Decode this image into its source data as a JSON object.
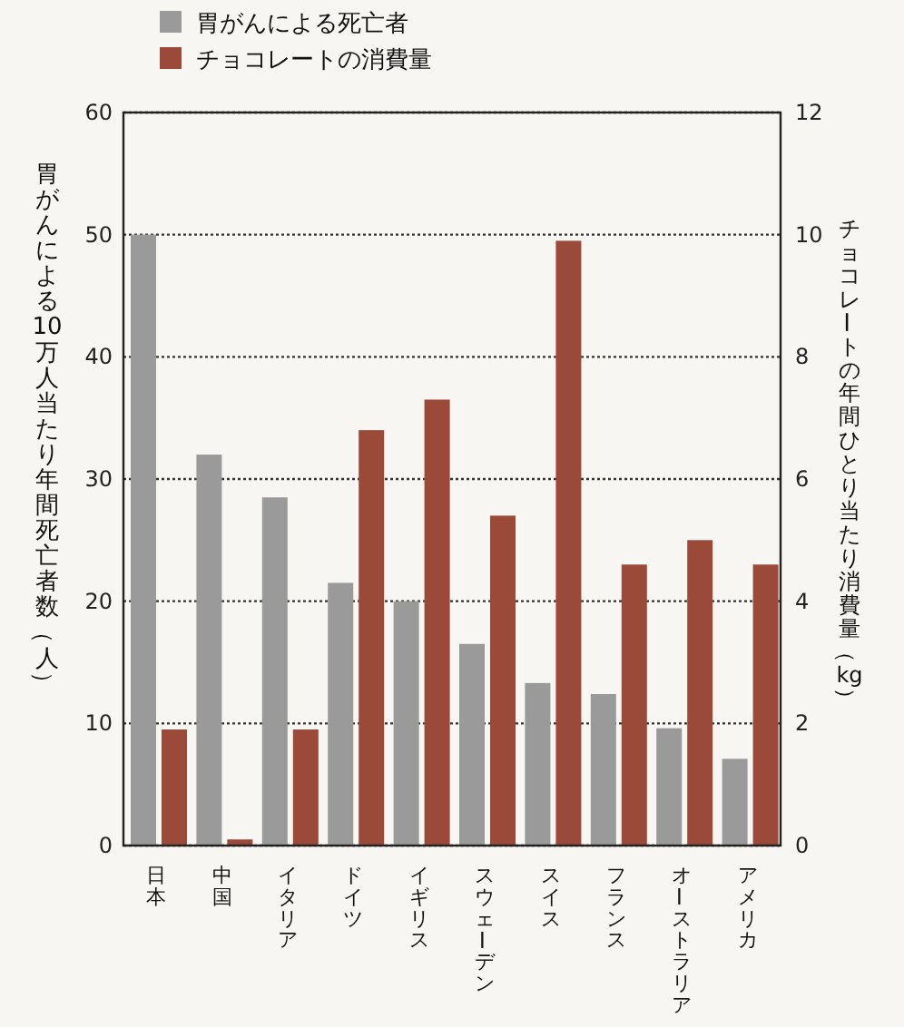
{
  "chart_data": {
    "type": "bar",
    "categories": [
      "日本",
      "中国",
      "イタリア",
      "ドイツ",
      "イギリス",
      "スウェーデン",
      "スイス",
      "フランス",
      "オーストラリア",
      "アメリカ"
    ],
    "series": [
      {
        "name": "胃がんによる死亡者",
        "color": "#9a9a9a",
        "values": [
          50,
          32,
          28.5,
          21.5,
          20,
          16.5,
          13.3,
          12.4,
          9.6,
          7.1
        ]
      },
      {
        "name": "チョコレートの消費量",
        "color": "#9b4a3a",
        "axis": "y2",
        "values": [
          1.9,
          0.1,
          1.9,
          6.8,
          7.3,
          5.4,
          9.9,
          4.6,
          5.0,
          4.6
        ]
      }
    ],
    "ylabel": "胃がんによる10万人当たり年間死亡者数（人）",
    "y2label": "チョコレートの年間ひとり当たり消費量（kg）",
    "ylim": [
      0,
      60
    ],
    "yticks": [
      0,
      10,
      20,
      30,
      40,
      50,
      60
    ],
    "y2lim": [
      0,
      12
    ],
    "y2ticks": [
      0,
      2,
      4,
      6,
      8,
      10,
      12
    ],
    "grid": "y",
    "legend": "top left"
  }
}
